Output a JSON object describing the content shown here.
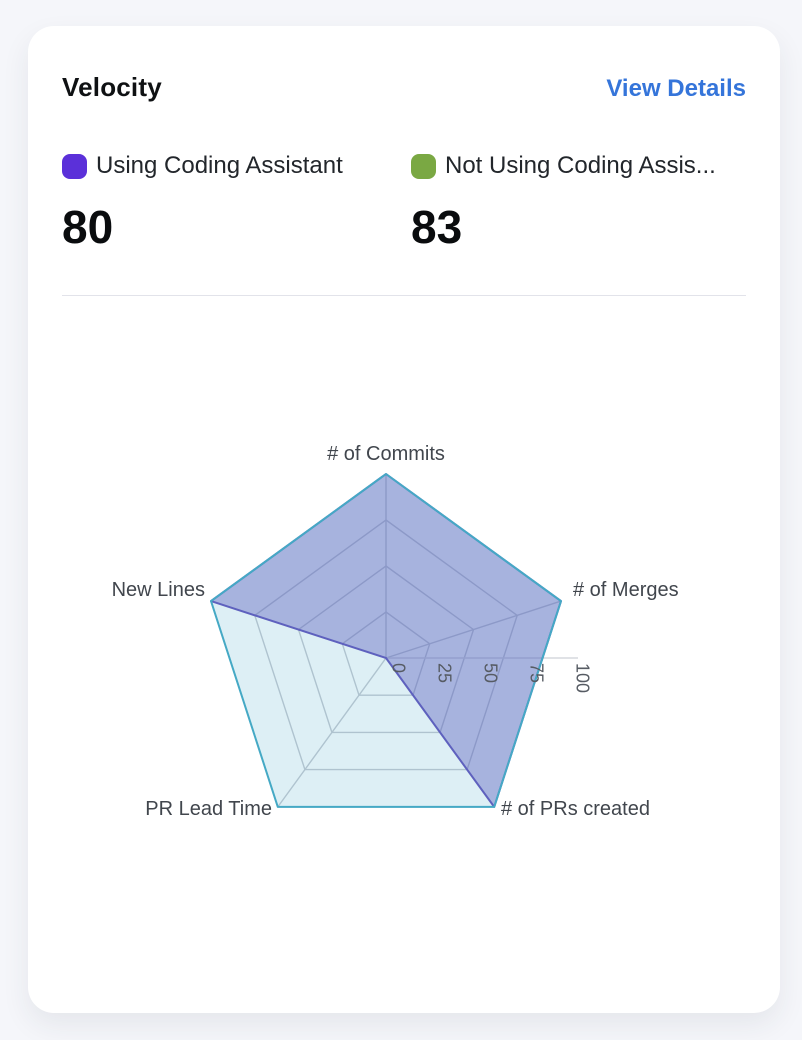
{
  "header": {
    "title": "Velocity",
    "link_label": "View Details",
    "link_color": "#3575da"
  },
  "legend": {
    "items": [
      {
        "label": "Using Coding Assistant",
        "value": "80",
        "swatch_color": "#5b30d9"
      },
      {
        "label": "Not Using Coding Assis...",
        "value": "83",
        "swatch_color": "#7aa843"
      }
    ]
  },
  "chart_data": {
    "type": "radar",
    "indicators": [
      "# of Commits",
      "# of Merges",
      "# of PRs created",
      "PR Lead Time",
      "New Lines"
    ],
    "axis_range": [
      0,
      100
    ],
    "tick_labels": [
      "0",
      "25",
      "50",
      "75",
      "100"
    ],
    "tick_values": [
      0,
      25,
      50,
      75,
      100
    ],
    "grid": true,
    "legend_position": "top-outside-card",
    "series": [
      {
        "name": "Using Coding Assistant",
        "line_color": "#6552bc",
        "fill_color": "rgba(101,82,188,0.42)",
        "values": [
          100,
          100,
          100,
          0,
          100
        ]
      },
      {
        "name": "Not Using Coding Assistant",
        "line_color": "#45a9c5",
        "fill_color": "rgba(69,169,197,0.18)",
        "values": [
          100,
          100,
          100,
          100,
          100
        ]
      }
    ],
    "grid_color": "#c7cad1",
    "radial_axis_color": "#d6d8dd",
    "tick_color": "#565b63",
    "indicator_color": "#41464d"
  }
}
